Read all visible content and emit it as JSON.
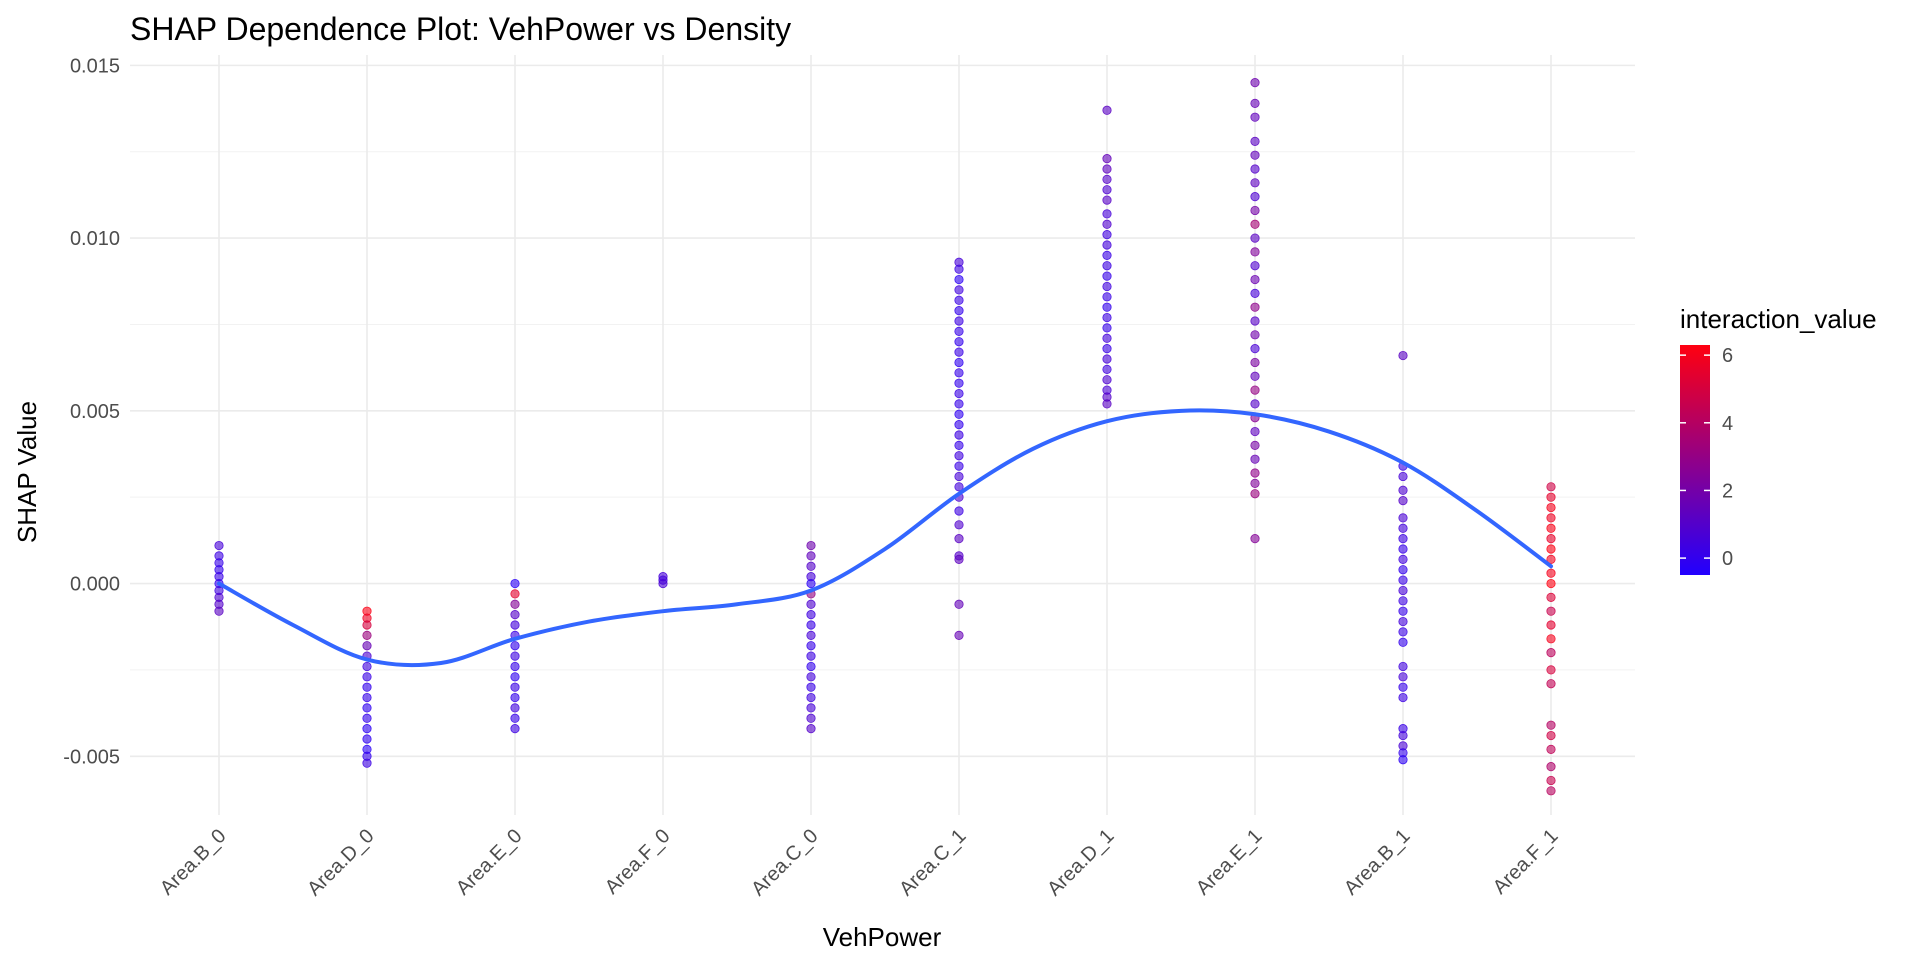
{
  "chart_data": {
    "type": "scatter",
    "title": "SHAP Dependence Plot: VehPower vs Density",
    "xlabel": "VehPower",
    "ylabel": "SHAP Value",
    "categories": [
      "Area.B_0",
      "Area.D_0",
      "Area.E_0",
      "Area.F_0",
      "Area.C_0",
      "Area.C_1",
      "Area.D_1",
      "Area.E_1",
      "Area.B_1",
      "Area.F_1"
    ],
    "ylim": [
      -0.0067,
      0.0153
    ],
    "yticks": [
      -0.005,
      0.0,
      0.005,
      0.01,
      0.015
    ],
    "ytick_labels": [
      "-0.005",
      "0.000",
      "0.005",
      "0.010",
      "0.015"
    ],
    "grid": true,
    "color_legend": {
      "title": "interaction_value",
      "min": -0.5,
      "max": 6.3,
      "ticks": [
        0,
        2,
        4,
        6
      ],
      "tick_labels": [
        "0",
        "2",
        "4",
        "6"
      ],
      "low_color": "#2200ff",
      "high_color": "#ff0010",
      "position": "right"
    },
    "points": [
      {
        "x": "Area.B_0",
        "y": 0.0011,
        "c": 0.6
      },
      {
        "x": "Area.B_0",
        "y": 0.0008,
        "c": 0.3
      },
      {
        "x": "Area.B_0",
        "y": 0.0006,
        "c": 0.1
      },
      {
        "x": "Area.B_0",
        "y": 0.0004,
        "c": 0.0
      },
      {
        "x": "Area.B_0",
        "y": 0.0002,
        "c": 0.2
      },
      {
        "x": "Area.B_0",
        "y": 0.0,
        "c": -0.1
      },
      {
        "x": "Area.B_0",
        "y": -0.0002,
        "c": 0.4
      },
      {
        "x": "Area.B_0",
        "y": -0.0004,
        "c": 0.8
      },
      {
        "x": "Area.B_0",
        "y": -0.0006,
        "c": 1.0
      },
      {
        "x": "Area.B_0",
        "y": -0.0008,
        "c": 1.2
      },
      {
        "x": "Area.D_0",
        "y": -0.0008,
        "c": 6.2
      },
      {
        "x": "Area.D_0",
        "y": -0.001,
        "c": 5.8
      },
      {
        "x": "Area.D_0",
        "y": -0.0012,
        "c": 5.0
      },
      {
        "x": "Area.D_0",
        "y": -0.0015,
        "c": 3.2
      },
      {
        "x": "Area.D_0",
        "y": -0.0018,
        "c": 1.6
      },
      {
        "x": "Area.D_0",
        "y": -0.0021,
        "c": 0.8
      },
      {
        "x": "Area.D_0",
        "y": -0.0024,
        "c": 0.4
      },
      {
        "x": "Area.D_0",
        "y": -0.0027,
        "c": 0.2
      },
      {
        "x": "Area.D_0",
        "y": -0.003,
        "c": 0.0
      },
      {
        "x": "Area.D_0",
        "y": -0.0033,
        "c": 0.1
      },
      {
        "x": "Area.D_0",
        "y": -0.0036,
        "c": -0.1
      },
      {
        "x": "Area.D_0",
        "y": -0.0039,
        "c": 0.0
      },
      {
        "x": "Area.D_0",
        "y": -0.0042,
        "c": -0.2
      },
      {
        "x": "Area.D_0",
        "y": -0.0045,
        "c": -0.1
      },
      {
        "x": "Area.D_0",
        "y": -0.0048,
        "c": -0.3
      },
      {
        "x": "Area.D_0",
        "y": -0.005,
        "c": 0.0
      },
      {
        "x": "Area.D_0",
        "y": -0.0052,
        "c": 0.3
      },
      {
        "x": "Area.E_0",
        "y": 0.0,
        "c": -0.3
      },
      {
        "x": "Area.E_0",
        "y": -0.0003,
        "c": 5.5
      },
      {
        "x": "Area.E_0",
        "y": -0.0006,
        "c": 2.5
      },
      {
        "x": "Area.E_0",
        "y": -0.0009,
        "c": 1.0
      },
      {
        "x": "Area.E_0",
        "y": -0.0012,
        "c": 0.5
      },
      {
        "x": "Area.E_0",
        "y": -0.0015,
        "c": 0.2
      },
      {
        "x": "Area.E_0",
        "y": -0.0018,
        "c": 0.0
      },
      {
        "x": "Area.E_0",
        "y": -0.0021,
        "c": 0.3
      },
      {
        "x": "Area.E_0",
        "y": -0.0024,
        "c": 0.1
      },
      {
        "x": "Area.E_0",
        "y": -0.0027,
        "c": -0.1
      },
      {
        "x": "Area.E_0",
        "y": -0.003,
        "c": 0.2
      },
      {
        "x": "Area.E_0",
        "y": -0.0033,
        "c": 0.0
      },
      {
        "x": "Area.E_0",
        "y": -0.0036,
        "c": 0.4
      },
      {
        "x": "Area.E_0",
        "y": -0.0039,
        "c": 0.1
      },
      {
        "x": "Area.E_0",
        "y": -0.0042,
        "c": 0.3
      },
      {
        "x": "Area.F_0",
        "y": 0.0002,
        "c": 0.6
      },
      {
        "x": "Area.F_0",
        "y": 0.0001,
        "c": 0.5
      },
      {
        "x": "Area.F_0",
        "y": 0.0,
        "c": 0.7
      },
      {
        "x": "Area.C_0",
        "y": 0.0011,
        "c": 1.8
      },
      {
        "x": "Area.C_0",
        "y": 0.0008,
        "c": 1.4
      },
      {
        "x": "Area.C_0",
        "y": 0.0005,
        "c": 1.0
      },
      {
        "x": "Area.C_0",
        "y": 0.0002,
        "c": 0.6
      },
      {
        "x": "Area.C_0",
        "y": 0.0,
        "c": -0.2
      },
      {
        "x": "Area.C_0",
        "y": -0.0003,
        "c": 3.0
      },
      {
        "x": "Area.C_0",
        "y": -0.0006,
        "c": 0.8
      },
      {
        "x": "Area.C_0",
        "y": -0.0009,
        "c": 0.4
      },
      {
        "x": "Area.C_0",
        "y": -0.0012,
        "c": 0.2
      },
      {
        "x": "Area.C_0",
        "y": -0.0015,
        "c": 0.6
      },
      {
        "x": "Area.C_0",
        "y": -0.0018,
        "c": 0.1
      },
      {
        "x": "Area.C_0",
        "y": -0.0021,
        "c": 0.3
      },
      {
        "x": "Area.C_0",
        "y": -0.0024,
        "c": 0.0
      },
      {
        "x": "Area.C_0",
        "y": -0.0027,
        "c": 0.5
      },
      {
        "x": "Area.C_0",
        "y": -0.003,
        "c": 0.2
      },
      {
        "x": "Area.C_0",
        "y": -0.0033,
        "c": 0.4
      },
      {
        "x": "Area.C_0",
        "y": -0.0036,
        "c": 0.6
      },
      {
        "x": "Area.C_0",
        "y": -0.0039,
        "c": 0.8
      },
      {
        "x": "Area.C_0",
        "y": -0.0042,
        "c": 1.0
      },
      {
        "x": "Area.C_1",
        "y": 0.0093,
        "c": 0.6
      },
      {
        "x": "Area.C_1",
        "y": 0.0091,
        "c": 0.3
      },
      {
        "x": "Area.C_1",
        "y": 0.0088,
        "c": -0.2
      },
      {
        "x": "Area.C_1",
        "y": 0.0085,
        "c": 0.4
      },
      {
        "x": "Area.C_1",
        "y": 0.0082,
        "c": 0.2
      },
      {
        "x": "Area.C_1",
        "y": 0.0079,
        "c": 0.0
      },
      {
        "x": "Area.C_1",
        "y": 0.0076,
        "c": 0.3
      },
      {
        "x": "Area.C_1",
        "y": 0.0073,
        "c": 0.1
      },
      {
        "x": "Area.C_1",
        "y": 0.007,
        "c": 0.0
      },
      {
        "x": "Area.C_1",
        "y": 0.0067,
        "c": 0.2
      },
      {
        "x": "Area.C_1",
        "y": 0.0064,
        "c": -0.1
      },
      {
        "x": "Area.C_1",
        "y": 0.0061,
        "c": 0.1
      },
      {
        "x": "Area.C_1",
        "y": 0.0058,
        "c": 0.0
      },
      {
        "x": "Area.C_1",
        "y": 0.0055,
        "c": 0.2
      },
      {
        "x": "Area.C_1",
        "y": 0.0052,
        "c": 0.1
      },
      {
        "x": "Area.C_1",
        "y": 0.0049,
        "c": -0.1
      },
      {
        "x": "Area.C_1",
        "y": 0.0046,
        "c": 0.0
      },
      {
        "x": "Area.C_1",
        "y": 0.0043,
        "c": 0.3
      },
      {
        "x": "Area.C_1",
        "y": 0.004,
        "c": 0.1
      },
      {
        "x": "Area.C_1",
        "y": 0.0037,
        "c": 0.4
      },
      {
        "x": "Area.C_1",
        "y": 0.0034,
        "c": 0.2
      },
      {
        "x": "Area.C_1",
        "y": 0.0031,
        "c": 0.6
      },
      {
        "x": "Area.C_1",
        "y": 0.0028,
        "c": 0.5
      },
      {
        "x": "Area.C_1",
        "y": 0.0025,
        "c": 0.8
      },
      {
        "x": "Area.C_1",
        "y": 0.0021,
        "c": 0.3
      },
      {
        "x": "Area.C_1",
        "y": 0.0017,
        "c": 0.9
      },
      {
        "x": "Area.C_1",
        "y": 0.0013,
        "c": 1.2
      },
      {
        "x": "Area.C_1",
        "y": 0.0008,
        "c": 1.0
      },
      {
        "x": "Area.C_1",
        "y": 0.0007,
        "c": 1.3
      },
      {
        "x": "Area.C_1",
        "y": -0.0006,
        "c": 1.5
      },
      {
        "x": "Area.C_1",
        "y": -0.0015,
        "c": 1.6
      },
      {
        "x": "Area.D_1",
        "y": 0.0137,
        "c": 1.2
      },
      {
        "x": "Area.D_1",
        "y": 0.0123,
        "c": 1.5
      },
      {
        "x": "Area.D_1",
        "y": 0.012,
        "c": 1.3
      },
      {
        "x": "Area.D_1",
        "y": 0.0117,
        "c": 1.0
      },
      {
        "x": "Area.D_1",
        "y": 0.0114,
        "c": 0.8
      },
      {
        "x": "Area.D_1",
        "y": 0.0111,
        "c": 1.1
      },
      {
        "x": "Area.D_1",
        "y": 0.0107,
        "c": 0.6
      },
      {
        "x": "Area.D_1",
        "y": 0.0104,
        "c": 0.9
      },
      {
        "x": "Area.D_1",
        "y": 0.0101,
        "c": 0.4
      },
      {
        "x": "Area.D_1",
        "y": 0.0098,
        "c": 0.5
      },
      {
        "x": "Area.D_1",
        "y": 0.0095,
        "c": 0.2
      },
      {
        "x": "Area.D_1",
        "y": 0.0092,
        "c": 0.3
      },
      {
        "x": "Area.D_1",
        "y": 0.0089,
        "c": 0.1
      },
      {
        "x": "Area.D_1",
        "y": 0.0086,
        "c": 0.4
      },
      {
        "x": "Area.D_1",
        "y": 0.0083,
        "c": 0.2
      },
      {
        "x": "Area.D_1",
        "y": 0.008,
        "c": 0.0
      },
      {
        "x": "Area.D_1",
        "y": 0.0077,
        "c": 0.3
      },
      {
        "x": "Area.D_1",
        "y": 0.0074,
        "c": 0.1
      },
      {
        "x": "Area.D_1",
        "y": 0.0071,
        "c": 0.5
      },
      {
        "x": "Area.D_1",
        "y": 0.0068,
        "c": 0.2
      },
      {
        "x": "Area.D_1",
        "y": 0.0065,
        "c": 0.6
      },
      {
        "x": "Area.D_1",
        "y": 0.0062,
        "c": 0.4
      },
      {
        "x": "Area.D_1",
        "y": 0.0059,
        "c": 0.8
      },
      {
        "x": "Area.D_1",
        "y": 0.0056,
        "c": 0.7
      },
      {
        "x": "Area.D_1",
        "y": 0.0054,
        "c": 1.0
      },
      {
        "x": "Area.D_1",
        "y": 0.0052,
        "c": 1.2
      },
      {
        "x": "Area.E_1",
        "y": 0.0145,
        "c": 1.8
      },
      {
        "x": "Area.E_1",
        "y": 0.0139,
        "c": 1.6
      },
      {
        "x": "Area.E_1",
        "y": 0.0135,
        "c": 1.4
      },
      {
        "x": "Area.E_1",
        "y": 0.0128,
        "c": 1.2
      },
      {
        "x": "Area.E_1",
        "y": 0.0124,
        "c": 1.5
      },
      {
        "x": "Area.E_1",
        "y": 0.012,
        "c": 1.0
      },
      {
        "x": "Area.E_1",
        "y": 0.0116,
        "c": 1.3
      },
      {
        "x": "Area.E_1",
        "y": 0.0112,
        "c": 0.8
      },
      {
        "x": "Area.E_1",
        "y": 0.0108,
        "c": 2.0
      },
      {
        "x": "Area.E_1",
        "y": 0.0104,
        "c": 3.5
      },
      {
        "x": "Area.E_1",
        "y": 0.01,
        "c": 1.2
      },
      {
        "x": "Area.E_1",
        "y": 0.0096,
        "c": 2.4
      },
      {
        "x": "Area.E_1",
        "y": 0.0092,
        "c": 0.9
      },
      {
        "x": "Area.E_1",
        "y": 0.0088,
        "c": 1.7
      },
      {
        "x": "Area.E_1",
        "y": 0.0084,
        "c": 0.6
      },
      {
        "x": "Area.E_1",
        "y": 0.008,
        "c": 2.8
      },
      {
        "x": "Area.E_1",
        "y": 0.0076,
        "c": 1.1
      },
      {
        "x": "Area.E_1",
        "y": 0.0072,
        "c": 1.9
      },
      {
        "x": "Area.E_1",
        "y": 0.0068,
        "c": 0.7
      },
      {
        "x": "Area.E_1",
        "y": 0.0064,
        "c": 2.2
      },
      {
        "x": "Area.E_1",
        "y": 0.006,
        "c": 1.4
      },
      {
        "x": "Area.E_1",
        "y": 0.0056,
        "c": 3.0
      },
      {
        "x": "Area.E_1",
        "y": 0.0052,
        "c": 1.0
      },
      {
        "x": "Area.E_1",
        "y": 0.0048,
        "c": 2.6
      },
      {
        "x": "Area.E_1",
        "y": 0.0044,
        "c": 1.3
      },
      {
        "x": "Area.E_1",
        "y": 0.004,
        "c": 2.1
      },
      {
        "x": "Area.E_1",
        "y": 0.0036,
        "c": 1.6
      },
      {
        "x": "Area.E_1",
        "y": 0.0032,
        "c": 2.9
      },
      {
        "x": "Area.E_1",
        "y": 0.0029,
        "c": 2.4
      },
      {
        "x": "Area.E_1",
        "y": 0.0026,
        "c": 3.2
      },
      {
        "x": "Area.E_1",
        "y": 0.0013,
        "c": 2.5
      },
      {
        "x": "Area.B_1",
        "y": 0.0066,
        "c": 1.2
      },
      {
        "x": "Area.B_1",
        "y": 0.0034,
        "c": 0.2
      },
      {
        "x": "Area.B_1",
        "y": 0.0031,
        "c": 0.6
      },
      {
        "x": "Area.B_1",
        "y": 0.0027,
        "c": 0.8
      },
      {
        "x": "Area.B_1",
        "y": 0.0024,
        "c": 1.0
      },
      {
        "x": "Area.B_1",
        "y": 0.0019,
        "c": 0.7
      },
      {
        "x": "Area.B_1",
        "y": 0.0016,
        "c": 0.5
      },
      {
        "x": "Area.B_1",
        "y": 0.0013,
        "c": 0.3
      },
      {
        "x": "Area.B_1",
        "y": 0.001,
        "c": 0.1
      },
      {
        "x": "Area.B_1",
        "y": 0.0007,
        "c": 0.4
      },
      {
        "x": "Area.B_1",
        "y": 0.0004,
        "c": 0.0
      },
      {
        "x": "Area.B_1",
        "y": 0.0001,
        "c": 0.2
      },
      {
        "x": "Area.B_1",
        "y": -0.0002,
        "c": 0.6
      },
      {
        "x": "Area.B_1",
        "y": -0.0005,
        "c": 0.3
      },
      {
        "x": "Area.B_1",
        "y": -0.0008,
        "c": 0.1
      },
      {
        "x": "Area.B_1",
        "y": -0.0011,
        "c": 0.5
      },
      {
        "x": "Area.B_1",
        "y": -0.0014,
        "c": 0.2
      },
      {
        "x": "Area.B_1",
        "y": -0.0017,
        "c": 0.0
      },
      {
        "x": "Area.B_1",
        "y": -0.0024,
        "c": 0.4
      },
      {
        "x": "Area.B_1",
        "y": -0.0027,
        "c": 0.6
      },
      {
        "x": "Area.B_1",
        "y": -0.003,
        "c": 0.1
      },
      {
        "x": "Area.B_1",
        "y": -0.0033,
        "c": 0.3
      },
      {
        "x": "Area.B_1",
        "y": -0.0042,
        "c": 0.2
      },
      {
        "x": "Area.B_1",
        "y": -0.0044,
        "c": 0.5
      },
      {
        "x": "Area.B_1",
        "y": -0.0047,
        "c": 0.7
      },
      {
        "x": "Area.B_1",
        "y": -0.0049,
        "c": 0.0
      },
      {
        "x": "Area.B_1",
        "y": -0.0051,
        "c": -0.2
      },
      {
        "x": "Area.F_1",
        "y": 0.0028,
        "c": 4.8
      },
      {
        "x": "Area.F_1",
        "y": 0.0025,
        "c": 5.5
      },
      {
        "x": "Area.F_1",
        "y": 0.0022,
        "c": 6.0
      },
      {
        "x": "Area.F_1",
        "y": 0.0019,
        "c": 5.8
      },
      {
        "x": "Area.F_1",
        "y": 0.0016,
        "c": 6.1
      },
      {
        "x": "Area.F_1",
        "y": 0.0013,
        "c": 5.6
      },
      {
        "x": "Area.F_1",
        "y": 0.001,
        "c": 6.2
      },
      {
        "x": "Area.F_1",
        "y": 0.0007,
        "c": 5.9
      },
      {
        "x": "Area.F_1",
        "y": 0.0003,
        "c": 6.0
      },
      {
        "x": "Area.F_1",
        "y": 0.0,
        "c": 6.3
      },
      {
        "x": "Area.F_1",
        "y": -0.0004,
        "c": 5.2
      },
      {
        "x": "Area.F_1",
        "y": -0.0008,
        "c": 4.6
      },
      {
        "x": "Area.F_1",
        "y": -0.0012,
        "c": 5.4
      },
      {
        "x": "Area.F_1",
        "y": -0.0016,
        "c": 6.0
      },
      {
        "x": "Area.F_1",
        "y": -0.002,
        "c": 4.2
      },
      {
        "x": "Area.F_1",
        "y": -0.0025,
        "c": 5.0
      },
      {
        "x": "Area.F_1",
        "y": -0.0029,
        "c": 4.4
      },
      {
        "x": "Area.F_1",
        "y": -0.0041,
        "c": 4.0
      },
      {
        "x": "Area.F_1",
        "y": -0.0044,
        "c": 4.8
      },
      {
        "x": "Area.F_1",
        "y": -0.0048,
        "c": 4.3
      },
      {
        "x": "Area.F_1",
        "y": -0.0053,
        "c": 3.8
      },
      {
        "x": "Area.F_1",
        "y": -0.0057,
        "c": 4.5
      },
      {
        "x": "Area.F_1",
        "y": -0.006,
        "c": 4.1
      }
    ],
    "smooth_curve": {
      "color": "#3366ff",
      "points": [
        {
          "x": 1.0,
          "y": 0.0
        },
        {
          "x": 1.5,
          "y": -0.0012
        },
        {
          "x": 2.0,
          "y": -0.0022
        },
        {
          "x": 2.5,
          "y": -0.0023
        },
        {
          "x": 3.0,
          "y": -0.0016
        },
        {
          "x": 3.5,
          "y": -0.0011
        },
        {
          "x": 4.0,
          "y": -0.0008
        },
        {
          "x": 4.5,
          "y": -0.0006
        },
        {
          "x": 5.0,
          "y": -0.0002
        },
        {
          "x": 5.5,
          "y": 0.001
        },
        {
          "x": 6.0,
          "y": 0.0026
        },
        {
          "x": 6.5,
          "y": 0.0039
        },
        {
          "x": 7.0,
          "y": 0.0047
        },
        {
          "x": 7.5,
          "y": 0.005
        },
        {
          "x": 8.0,
          "y": 0.0049
        },
        {
          "x": 8.5,
          "y": 0.0044
        },
        {
          "x": 9.0,
          "y": 0.0035
        },
        {
          "x": 9.5,
          "y": 0.0021
        },
        {
          "x": 10.0,
          "y": 0.0005
        }
      ]
    }
  }
}
